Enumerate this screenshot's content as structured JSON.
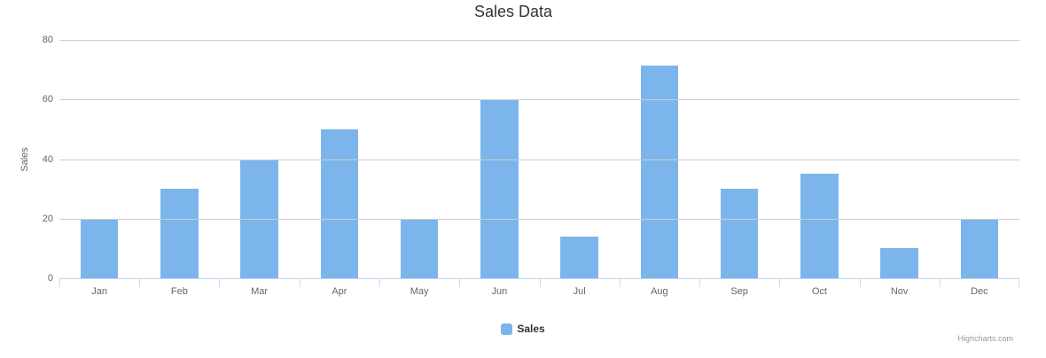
{
  "title": "Sales Data",
  "chart_data": {
    "type": "bar",
    "title": "Sales Data",
    "categories": [
      "Jan",
      "Feb",
      "Mar",
      "Apr",
      "May",
      "Jun",
      "Jul",
      "Aug",
      "Sep",
      "Oct",
      "Nov",
      "Dec"
    ],
    "series": [
      {
        "name": "Sales",
        "color": "#7cb5ec",
        "values": [
          20,
          30,
          40,
          50,
          20,
          60,
          14,
          71.5,
          30,
          35,
          10,
          20
        ]
      }
    ],
    "xlabel": "",
    "ylabel": "Sales",
    "ylim": [
      0,
      80
    ],
    "yticks": [
      0,
      20,
      40,
      60,
      80
    ],
    "grid": true,
    "legend_position": "bottom"
  },
  "legend": {
    "items": [
      {
        "label": "Sales",
        "color": "#7cb5ec"
      }
    ]
  },
  "credits": "Highcharts.com",
  "colors": {
    "bar": "#7cb5ec",
    "gridline": "#cccccc",
    "axis_line": "#ccd6eb",
    "title_text": "#333333",
    "axis_text": "#666666",
    "legend_text": "#333333",
    "credits_text": "#999999"
  }
}
